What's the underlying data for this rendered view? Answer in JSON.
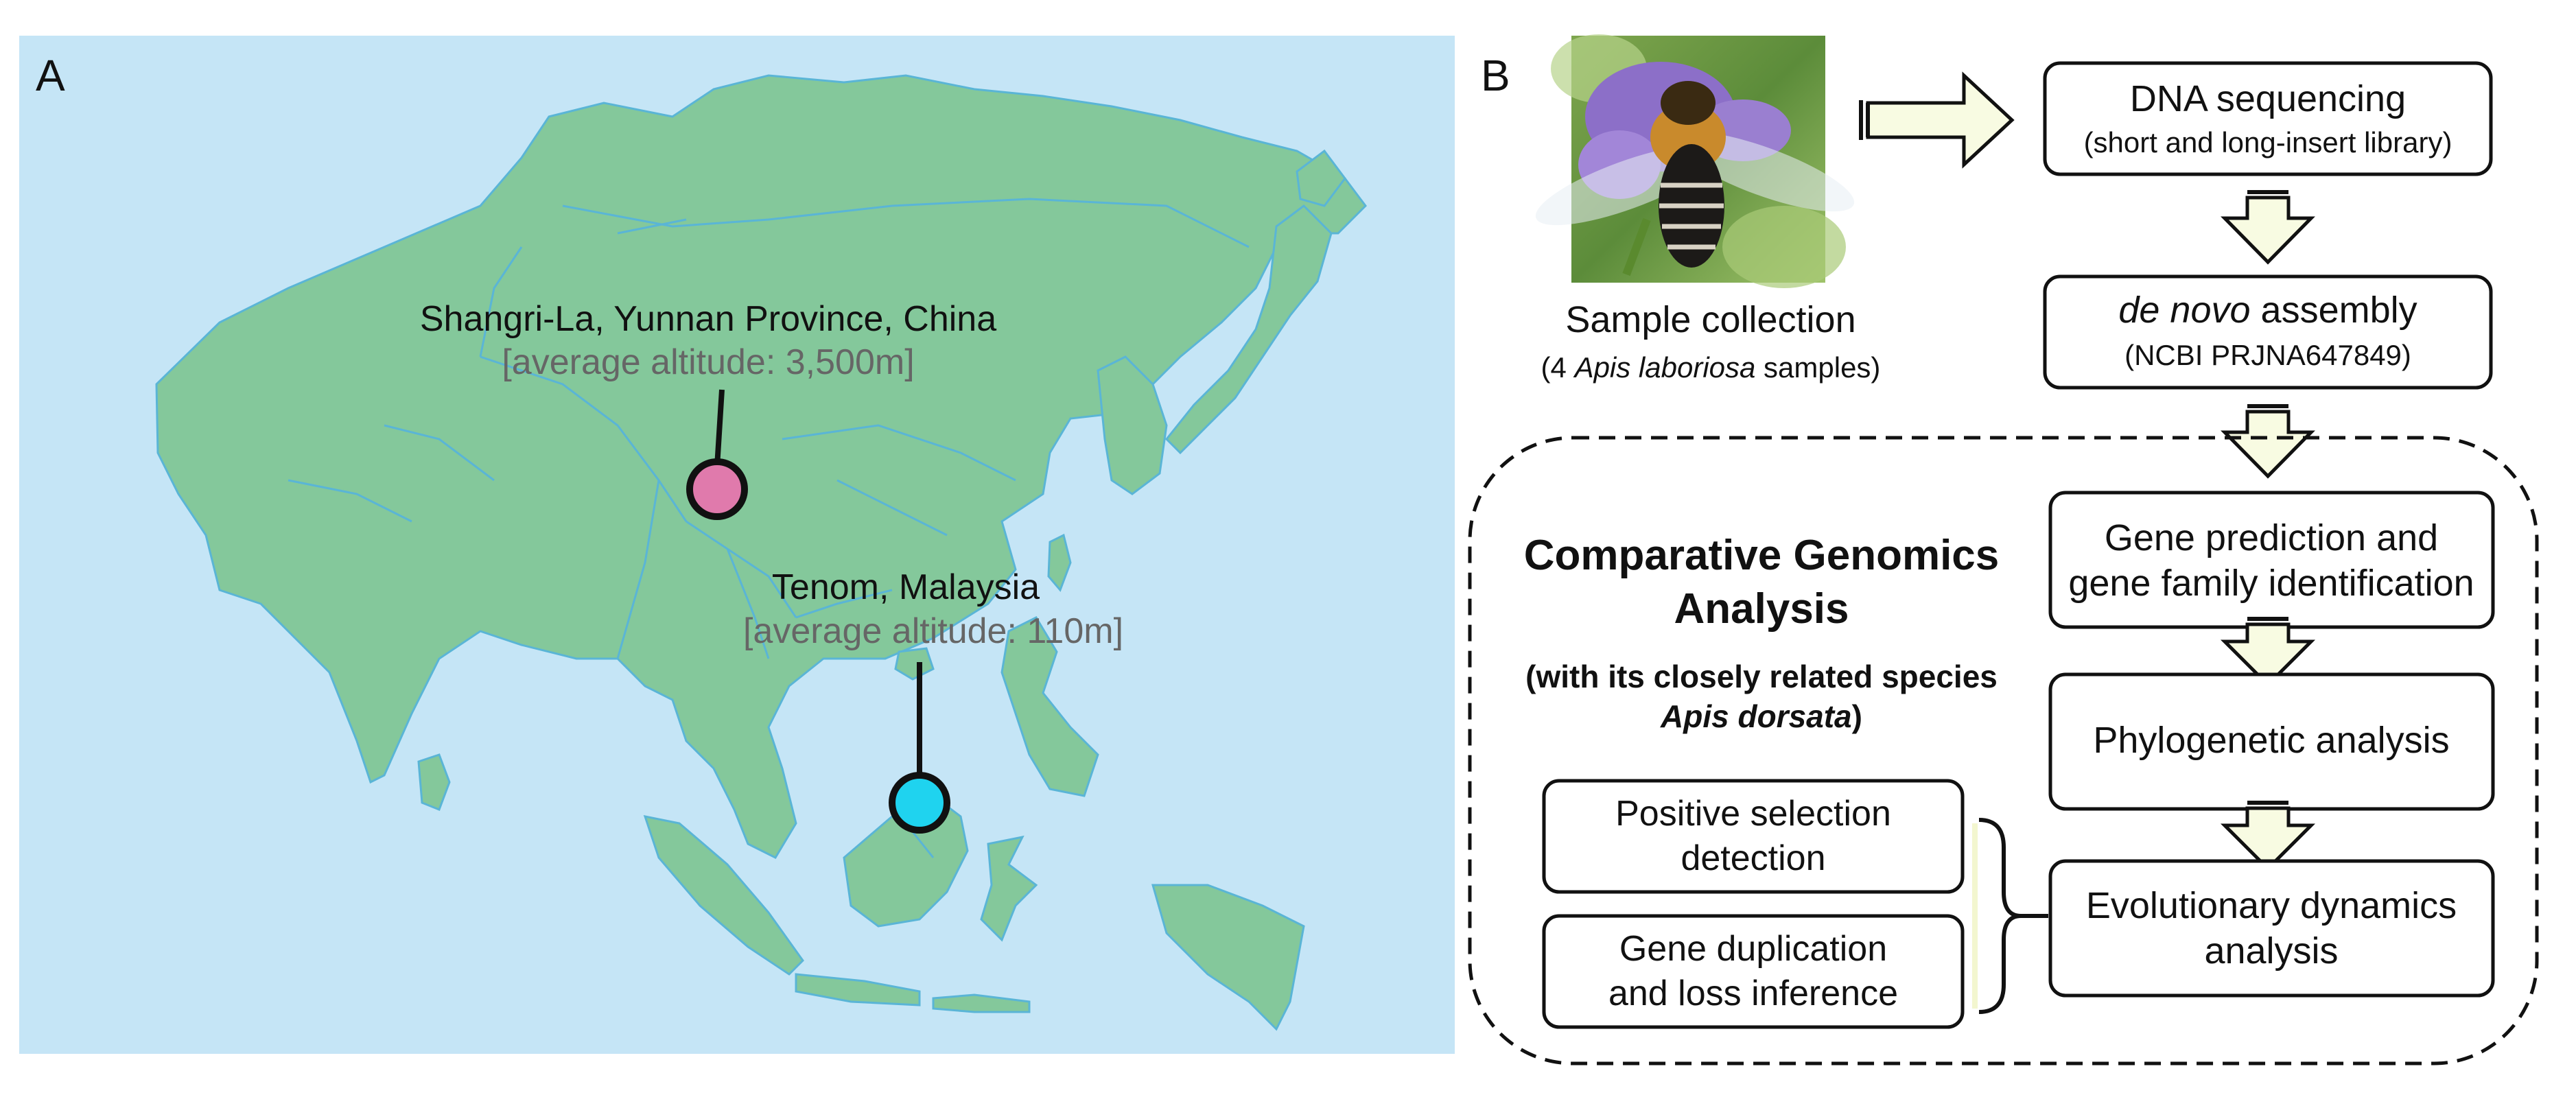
{
  "panel_a": {
    "label": "A",
    "locations": [
      {
        "name": "Shangri-La, Yunnan Province, China",
        "altitude": "[average altitude: 3,500m]",
        "marker_color": "#e07aac"
      },
      {
        "name": "Tenom, Malaysia",
        "altitude": "[average altitude: 110m]",
        "marker_color": "#1fd3ef"
      }
    ],
    "colors": {
      "sea": "#c5e5f6",
      "land": "#84c89b",
      "borders": "#5ab5d6"
    }
  },
  "panel_b": {
    "label": "B",
    "sample": {
      "caption": "Sample collection",
      "sub_pre": "(4 ",
      "sub_species": "Apis laboriosa",
      "sub_post": " samples)"
    },
    "steps": {
      "dna_seq": {
        "title": "DNA sequencing",
        "sub": "(short and long-insert library)"
      },
      "assembly": {
        "title_ital": "de novo",
        "title_rest": " assembly",
        "sub": "(NCBI PRJNA647849)"
      },
      "gene_pred": {
        "line1": "Gene prediction and",
        "line2": "gene family identification"
      },
      "phylo": {
        "label": "Phylogenetic analysis"
      },
      "evo": {
        "line1": "Evolutionary dynamics",
        "line2": "analysis"
      },
      "pos_sel": {
        "line1": "Positive selection",
        "line2": "detection"
      },
      "gene_dup": {
        "line1": "Gene duplication",
        "line2": "and loss inference"
      }
    },
    "comparative": {
      "title1": "Comparative Genomics",
      "title2": "Analysis",
      "sub1": "(with its closely related species",
      "sub2_species": "Apis dorsata",
      "sub2_post": ")"
    },
    "colors": {
      "arrow_fill": "#f8fbe2",
      "box_stroke": "#111111"
    }
  }
}
